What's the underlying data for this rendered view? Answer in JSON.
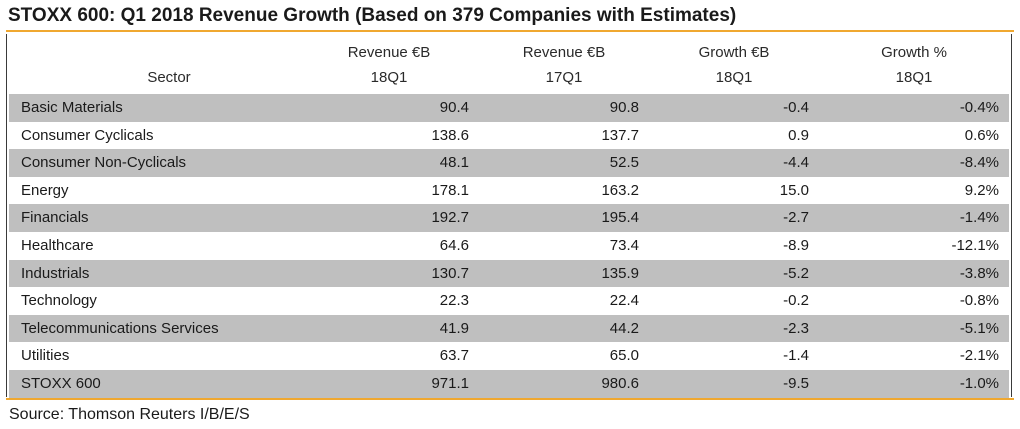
{
  "title": "STOXX 600: Q1 2018 Revenue Growth (Based on 379 Companies with Estimates)",
  "source": "Source: Thomson Reuters I/B/E/S",
  "colors": {
    "accent_rule": "#f0a830",
    "row_shade": "#bfbfbf"
  },
  "header": {
    "sector": "Sector",
    "columns": [
      {
        "line1": "Revenue €B",
        "line2": "18Q1"
      },
      {
        "line1": "Revenue €B",
        "line2": "17Q1"
      },
      {
        "line1": "Growth €B",
        "line2": "18Q1"
      },
      {
        "line1": "Growth %",
        "line2": "18Q1"
      }
    ]
  },
  "chart_data": {
    "type": "table",
    "title": "STOXX 600: Q1 2018 Revenue Growth (Based on 379 Companies with Estimates)",
    "columns": [
      "Sector",
      "Revenue €B 18Q1",
      "Revenue €B 17Q1",
      "Growth €B 18Q1",
      "Growth % 18Q1"
    ],
    "rows": [
      {
        "sector": "Basic Materials",
        "rev18": "90.4",
        "rev17": "90.8",
        "growth_eur": "-0.4",
        "growth_pct": "-0.4%"
      },
      {
        "sector": "Consumer Cyclicals",
        "rev18": "138.6",
        "rev17": "137.7",
        "growth_eur": "0.9",
        "growth_pct": "0.6%"
      },
      {
        "sector": "Consumer Non-Cyclicals",
        "rev18": "48.1",
        "rev17": "52.5",
        "growth_eur": "-4.4",
        "growth_pct": "-8.4%"
      },
      {
        "sector": "Energy",
        "rev18": "178.1",
        "rev17": "163.2",
        "growth_eur": "15.0",
        "growth_pct": "9.2%"
      },
      {
        "sector": "Financials",
        "rev18": "192.7",
        "rev17": "195.4",
        "growth_eur": "-2.7",
        "growth_pct": "-1.4%"
      },
      {
        "sector": "Healthcare",
        "rev18": "64.6",
        "rev17": "73.4",
        "growth_eur": "-8.9",
        "growth_pct": "-12.1%"
      },
      {
        "sector": "Industrials",
        "rev18": "130.7",
        "rev17": "135.9",
        "growth_eur": "-5.2",
        "growth_pct": "-3.8%"
      },
      {
        "sector": "Technology",
        "rev18": "22.3",
        "rev17": "22.4",
        "growth_eur": "-0.2",
        "growth_pct": "-0.8%"
      },
      {
        "sector": "Telecommunications Services",
        "rev18": "41.9",
        "rev17": "44.2",
        "growth_eur": "-2.3",
        "growth_pct": "-5.1%"
      },
      {
        "sector": "Utilities",
        "rev18": "63.7",
        "rev17": "65.0",
        "growth_eur": "-1.4",
        "growth_pct": "-2.1%"
      },
      {
        "sector": "STOXX 600",
        "rev18": "971.1",
        "rev17": "980.6",
        "growth_eur": "-9.5",
        "growth_pct": "-1.0%"
      }
    ]
  }
}
